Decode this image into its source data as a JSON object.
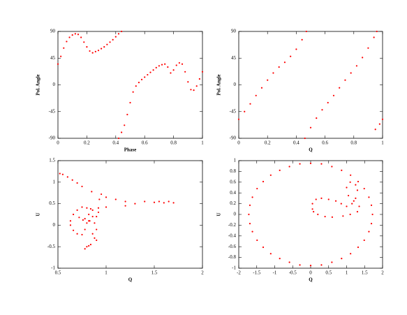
{
  "chart_data": [
    {
      "type": "scatter",
      "x_label": "Phase",
      "y_label": "Pol. Angle",
      "color": "#ff0000",
      "xlim": [
        0,
        1
      ],
      "ylim": [
        -90,
        90
      ],
      "xticks": [
        0,
        0.2,
        0.4,
        0.6,
        0.8,
        1
      ],
      "yticks": [
        -90,
        -45,
        0,
        45,
        90
      ],
      "x": [
        0,
        0.02,
        0.04,
        0.06,
        0.08,
        0.1,
        0.12,
        0.14,
        0.16,
        0.18,
        0.2,
        0.22,
        0.24,
        0.26,
        0.28,
        0.3,
        0.32,
        0.34,
        0.36,
        0.38,
        0.4,
        0.42,
        0.44,
        0.42,
        0.44,
        0.46,
        0.48,
        0.5,
        0.52,
        0.54,
        0.56,
        0.58,
        0.6,
        0.62,
        0.64,
        0.66,
        0.68,
        0.7,
        0.72,
        0.74,
        0.76,
        0.78,
        0.8,
        0.82,
        0.84,
        0.86,
        0.88,
        0.9,
        0.92,
        0.94,
        0.96,
        0.98,
        1.0
      ],
      "values": [
        35,
        48,
        62,
        73,
        80,
        84,
        86,
        85,
        80,
        72,
        64,
        57,
        54,
        56,
        58,
        61,
        64,
        68,
        72,
        76,
        81,
        86,
        90,
        -90,
        -80,
        -68,
        -50,
        -30,
        -12,
        -2,
        4,
        9,
        13,
        17,
        21,
        25,
        29,
        32,
        34,
        35,
        30,
        20,
        25,
        33,
        37,
        35,
        22,
        5,
        -8,
        -9,
        -2,
        10,
        22
      ]
    },
    {
      "type": "scatter",
      "x_label": "Q",
      "y_label": "Pol. Angle",
      "color": "#ff0000",
      "xlim": [
        0,
        1
      ],
      "ylim": [
        -90,
        90
      ],
      "xticks": [
        0,
        0.2,
        0.4,
        0.6,
        0.8,
        1
      ],
      "yticks": [
        -90,
        -45,
        0,
        45,
        90
      ],
      "x": [
        0,
        0.04,
        0.08,
        0.12,
        0.16,
        0.2,
        0.24,
        0.28,
        0.32,
        0.36,
        0.4,
        0.44,
        0.47,
        0.46,
        0.5,
        0.54,
        0.58,
        0.62,
        0.66,
        0.7,
        0.74,
        0.78,
        0.82,
        0.86,
        0.9,
        0.94,
        0.96,
        0.95,
        0.98,
        1.0
      ],
      "values": [
        -58,
        -45,
        -32,
        -18,
        -5,
        8,
        20,
        30,
        38,
        48,
        60,
        76,
        90,
        -90,
        -72,
        -56,
        -42,
        -30,
        -18,
        -5,
        8,
        20,
        32,
        46,
        62,
        80,
        90,
        -75,
        -66,
        -58
      ]
    },
    {
      "type": "scatter",
      "x_label": "Q",
      "y_label": "U",
      "color": "#ff0000",
      "xlim": [
        0.5,
        2
      ],
      "ylim": [
        -1,
        1.5
      ],
      "xticks": [
        0.5,
        1,
        1.5,
        2
      ],
      "yticks": [
        -1,
        -0.5,
        0,
        0.5,
        1,
        1.5
      ],
      "x": [
        0.52,
        0.55,
        0.6,
        0.65,
        0.7,
        0.75,
        0.85,
        0.95,
        1.0,
        1.1,
        1.2,
        1.3,
        1.4,
        1.5,
        1.55,
        1.6,
        1.65,
        1.7,
        1.2,
        1.0,
        0.8,
        0.75,
        0.7,
        0.66,
        0.63,
        0.63,
        0.66,
        0.7,
        0.75,
        0.78,
        0.8,
        0.82,
        0.84,
        0.86,
        0.86,
        0.83,
        0.78,
        0.72,
        0.76,
        0.82,
        0.88,
        0.9,
        0.88,
        0.84,
        0.8,
        0.78,
        0.82,
        0.86,
        0.9,
        0.92,
        0.93,
        0.92,
        0.9
      ],
      "values": [
        1.2,
        1.18,
        1.12,
        1.05,
        0.98,
        0.9,
        0.78,
        0.72,
        0.65,
        0.6,
        0.55,
        0.5,
        0.55,
        0.53,
        0.55,
        0.52,
        0.55,
        0.52,
        0.45,
        0.42,
        0.4,
        0.42,
        0.35,
        0.25,
        0.1,
        0,
        -0.12,
        -0.2,
        -0.22,
        -0.1,
        0.05,
        0.25,
        0.38,
        0.35,
        0.2,
        0.1,
        0.15,
        0.18,
        0.12,
        0.1,
        0.05,
        -0.1,
        -0.3,
        -0.45,
        -0.5,
        -0.55,
        -0.48,
        -0.2,
        0.2,
        0.4,
        0.6,
        0.3,
        -0.35
      ]
    },
    {
      "type": "scatter",
      "x_label": "Q",
      "y_label": "U",
      "color": "#ff0000",
      "xlim": [
        -2,
        2
      ],
      "ylim": [
        -1,
        1
      ],
      "xticks": [
        -2,
        -1.5,
        -1,
        -0.5,
        0,
        0.5,
        1,
        1.5,
        2
      ],
      "yticks": [
        -1,
        -0.8,
        -0.6,
        -0.4,
        -0.2,
        0,
        0.2,
        0.4,
        0.6,
        0.8,
        1
      ],
      "x": [
        1.72,
        1.69,
        1.62,
        1.49,
        1.32,
        1.11,
        0.86,
        0.59,
        0.3,
        0,
        -0.3,
        -0.59,
        -0.86,
        -1.11,
        -1.32,
        -1.49,
        -1.62,
        -1.69,
        -1.72,
        -1.69,
        -1.62,
        -1.49,
        -1.32,
        -1.11,
        -0.86,
        -0.59,
        -0.3,
        0,
        0.3,
        0.59,
        0.86,
        1.11,
        1.32,
        1.49,
        1.62,
        1.69,
        0.05,
        0.05,
        0.15,
        0.3,
        0.5,
        0.7,
        0.85,
        1.0,
        1.15,
        1.25,
        1.3,
        1.25,
        1.1,
        1.0,
        1.05,
        1.2,
        1.35,
        1.3,
        1.1,
        0.9,
        0.6,
        0.4,
        0.2,
        0.08
      ],
      "values": [
        0,
        0.17,
        0.32,
        0.48,
        0.61,
        0.73,
        0.82,
        0.89,
        0.94,
        0.95,
        0.94,
        0.89,
        0.82,
        0.73,
        0.61,
        0.48,
        0.32,
        0.17,
        0,
        -0.17,
        -0.32,
        -0.48,
        -0.61,
        -0.73,
        -0.82,
        -0.89,
        -0.94,
        -0.95,
        -0.94,
        -0.89,
        -0.82,
        -0.73,
        -0.61,
        -0.48,
        -0.32,
        -0.17,
        0.1,
        0.2,
        0.28,
        0.3,
        0.28,
        0.25,
        0.2,
        0.15,
        0.2,
        0.3,
        0.45,
        0.55,
        0.6,
        0.5,
        0.35,
        0.25,
        0.15,
        0.05,
        0,
        -0.03,
        -0.05,
        -0.04,
        0,
        0.05
      ]
    }
  ]
}
